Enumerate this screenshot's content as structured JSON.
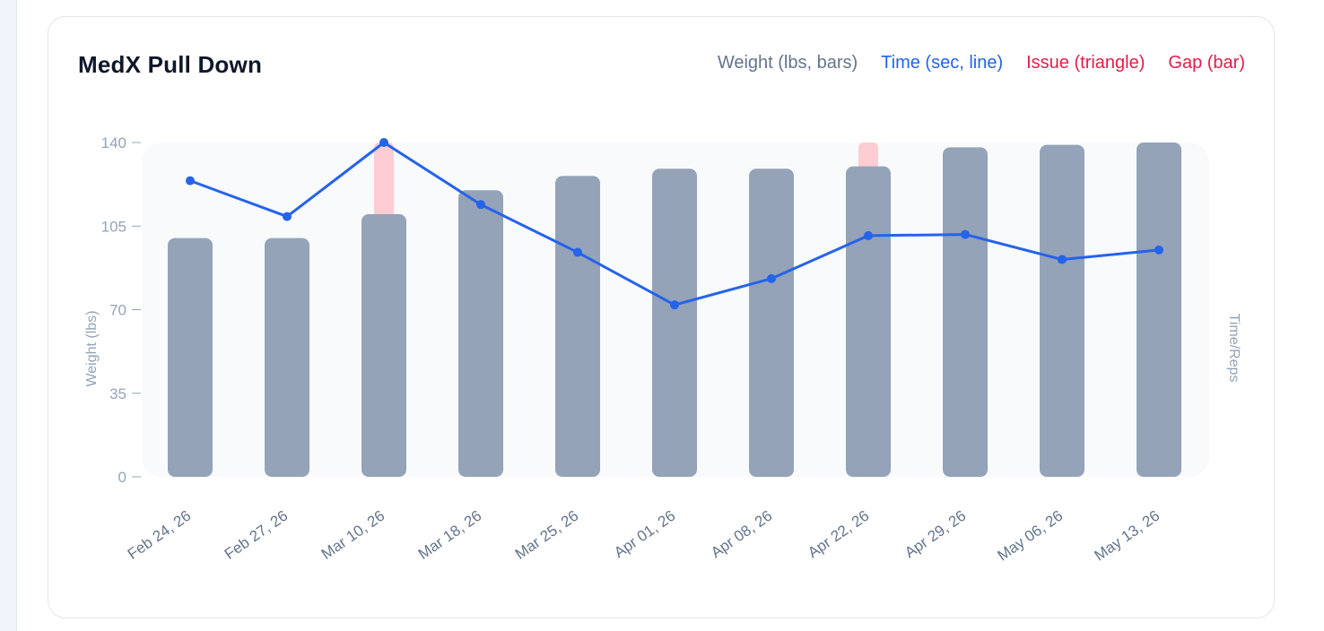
{
  "card": {
    "title": "MedX Pull Down"
  },
  "legend": {
    "weight": {
      "label": "Weight (lbs, bars)",
      "color": "#64748b"
    },
    "time": {
      "label": "Time (sec, line)",
      "color": "#2563eb"
    },
    "issue": {
      "label": "Issue (triangle)",
      "color": "#e11d48"
    },
    "gap": {
      "label": "Gap (bar)",
      "color": "#e11d48"
    }
  },
  "chart_data": {
    "type": "bar",
    "title": "MedX Pull Down",
    "categories": [
      "Feb 24, 26",
      "Feb 27, 26",
      "Mar 10, 26",
      "Mar 18, 26",
      "Mar 25, 26",
      "Apr 01, 26",
      "Apr 08, 26",
      "Apr 22, 26",
      "Apr 29, 26",
      "May 06, 26",
      "May 13, 26"
    ],
    "ylabel": "Weight (lbs)",
    "y2label": "Time/Reps",
    "ylim": [
      0,
      140
    ],
    "yticks": [
      0,
      35,
      70,
      105,
      140
    ],
    "series": [
      {
        "name": "Weight (lbs, bars)",
        "type": "bar",
        "color": "#94a3b8",
        "values": [
          100,
          100,
          110,
          120,
          126,
          129,
          129,
          130,
          138,
          139,
          140
        ]
      },
      {
        "name": "Gap (bar)",
        "type": "bar-gap",
        "color": "#fecdd3",
        "base": [
          100,
          100,
          110,
          120,
          126,
          129,
          129,
          130,
          138,
          139,
          140
        ],
        "values": [
          null,
          null,
          140,
          null,
          null,
          null,
          null,
          140,
          null,
          null,
          null
        ]
      },
      {
        "name": "Time (sec, line)",
        "type": "line",
        "color": "#2563eb",
        "values": [
          124,
          109,
          140,
          114,
          94,
          72,
          83,
          101,
          101.5,
          91,
          95
        ]
      }
    ],
    "grid": false
  }
}
